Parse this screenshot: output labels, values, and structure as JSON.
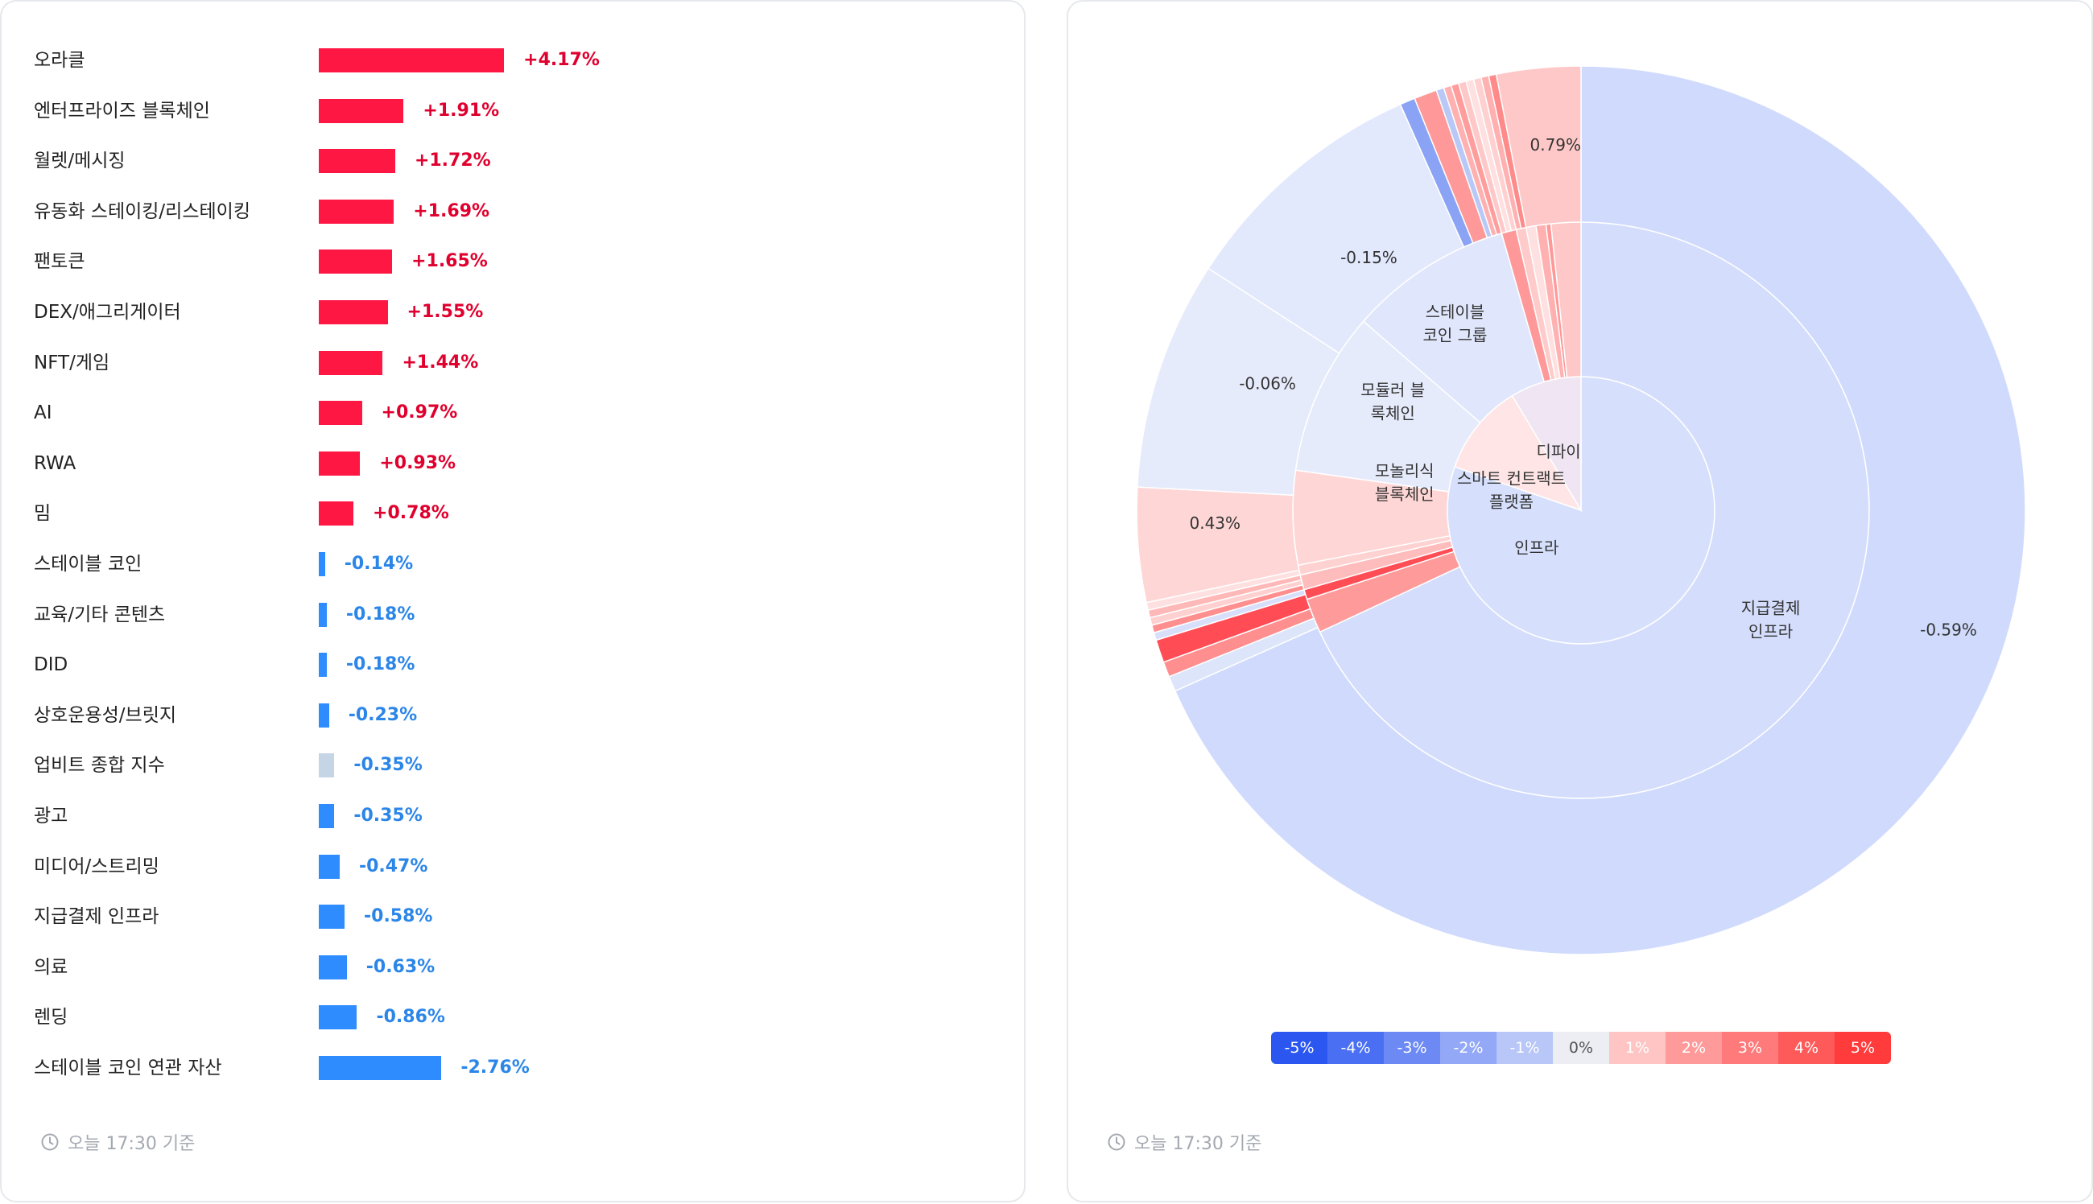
{
  "chart_data": [
    {
      "type": "bar",
      "orientation": "horizontal",
      "unit": "%",
      "categories": [
        "오라클",
        "엔터프라이즈 블록체인",
        "월렛/메시징",
        "유동화 스테이킹/리스테이킹",
        "팬토큰",
        "DEX/애그리게이터",
        "NFT/게임",
        "AI",
        "RWA",
        "밈",
        "스테이블 코인",
        "교육/기타 콘텐츠",
        "DID",
        "상호운용성/브릿지",
        "업비트 종합 지수",
        "광고",
        "미디어/스트리밍",
        "지급결제 인프라",
        "의료",
        "렌딩",
        "스테이블 코인 연관 자산"
      ],
      "values": [
        4.17,
        1.91,
        1.72,
        1.69,
        1.65,
        1.55,
        1.44,
        0.97,
        0.93,
        0.78,
        -0.14,
        -0.18,
        -0.18,
        -0.23,
        -0.35,
        -0.35,
        -0.47,
        -0.58,
        -0.63,
        -0.86,
        -2.76
      ],
      "value_labels": [
        "+4.17%",
        "+1.91%",
        "+1.72%",
        "+1.69%",
        "+1.65%",
        "+1.55%",
        "+1.44%",
        "+0.97%",
        "+0.93%",
        "+0.78%",
        "-0.14%",
        "-0.18%",
        "-0.18%",
        "-0.23%",
        "-0.35%",
        "-0.35%",
        "-0.47%",
        "-0.58%",
        "-0.63%",
        "-0.86%",
        "-2.76%"
      ],
      "highlight_category": "업비트 종합 지수",
      "colors": {
        "positive": "#ff1744",
        "negative": "#2f8cff",
        "index": "#c5d5e6"
      }
    },
    {
      "type": "sunburst",
      "start_angle_deg": 0,
      "direction": "clockwise",
      "legend": {
        "labels": [
          "-5%",
          "-4%",
          "-3%",
          "-2%",
          "-1%",
          "0%",
          "1%",
          "2%",
          "3%",
          "4%",
          "5%"
        ],
        "placement": "bottom"
      },
      "rings": {
        "inner": [
          {
            "label": "인프라",
            "start": 0,
            "end": 289,
            "color": "#d6e0fc"
          },
          {
            "label": "스마트 컨트랙트\n플랫폼",
            "start": 289,
            "end": 329,
            "color": "#ffe5e5"
          },
          {
            "label": "디파이",
            "start": 329,
            "end": 360,
            "color": "#f0e6f3"
          }
        ],
        "middle": [
          {
            "label": "지급결제\n인프라",
            "start": 0,
            "end": 245,
            "color": "#d4defc"
          },
          {
            "label": "",
            "start": 245,
            "end": 252,
            "color": "#ff9a9a"
          },
          {
            "label": "",
            "start": 252,
            "end": 254,
            "color": "#ff4d55"
          },
          {
            "label": "",
            "start": 254,
            "end": 257,
            "color": "#ffbcbc"
          },
          {
            "label": "",
            "start": 257,
            "end": 259,
            "color": "#ffd2d2"
          },
          {
            "label": "모놀리식\n블록체인",
            "start": 259,
            "end": 278,
            "color": "#ffd6d6"
          },
          {
            "label": "모듈러 블\n록체인",
            "start": 278,
            "end": 311,
            "color": "#e6ebfc"
          },
          {
            "label": "스테이블\n코인 그룹",
            "start": 311,
            "end": 344,
            "color": "#e0e7fc"
          },
          {
            "label": "",
            "start": 344,
            "end": 347,
            "color": "#ff9898"
          },
          {
            "label": "",
            "start": 347,
            "end": 349,
            "color": "#ffcaca"
          },
          {
            "label": "",
            "start": 349,
            "end": 351,
            "color": "#ffe0e0"
          },
          {
            "label": "",
            "start": 351,
            "end": 353,
            "color": "#ffb0b0"
          },
          {
            "label": "",
            "start": 353,
            "end": 354,
            "color": "#ff9898"
          },
          {
            "label": "",
            "start": 354,
            "end": 360,
            "color": "#ffc8c8"
          }
        ],
        "outer": [
          {
            "label": "-0.59%",
            "start": 0,
            "end": 246,
            "color": "#cfdafd"
          },
          {
            "label": "",
            "start": 246,
            "end": 248,
            "color": "#dde5fb"
          },
          {
            "label": "",
            "start": 248,
            "end": 250,
            "color": "#ff8e8e"
          },
          {
            "label": "",
            "start": 250,
            "end": 253,
            "color": "#ff4c55"
          },
          {
            "label": "",
            "start": 253,
            "end": 254,
            "color": "#d7dffa"
          },
          {
            "label": "",
            "start": 254,
            "end": 255,
            "color": "#ff8e8e"
          },
          {
            "label": "",
            "start": 255,
            "end": 256,
            "color": "#ffd0d0"
          },
          {
            "label": "",
            "start": 256,
            "end": 257,
            "color": "#ffb8b8"
          },
          {
            "label": "",
            "start": 257,
            "end": 258,
            "color": "#ffe0e0"
          },
          {
            "label": "0.43%",
            "start": 258,
            "end": 273,
            "color": "#ffd6d6"
          },
          {
            "label": "-0.06%",
            "start": 273,
            "end": 303,
            "color": "#e6ebfc"
          },
          {
            "label": "-0.15%",
            "start": 303,
            "end": 336,
            "color": "#e3e9fd"
          },
          {
            "label": "",
            "start": 336,
            "end": 338,
            "color": "#8aa3f4"
          },
          {
            "label": "",
            "start": 338,
            "end": 341,
            "color": "#ff9898"
          },
          {
            "label": "",
            "start": 341,
            "end": 342,
            "color": "#b8c8f7"
          },
          {
            "label": "",
            "start": 342,
            "end": 343,
            "color": "#ffb0b0"
          },
          {
            "label": "",
            "start": 343,
            "end": 344,
            "color": "#ff9c9c"
          },
          {
            "label": "",
            "start": 344,
            "end": 345,
            "color": "#ffc8c8"
          },
          {
            "label": "",
            "start": 345,
            "end": 346,
            "color": "#ffe0e0"
          },
          {
            "label": "",
            "start": 346,
            "end": 347,
            "color": "#ffd0d0"
          },
          {
            "label": "",
            "start": 347,
            "end": 348,
            "color": "#ffb0b0"
          },
          {
            "label": "",
            "start": 348,
            "end": 349,
            "color": "#ff8a8a"
          },
          {
            "label": "0.79%",
            "start": 349,
            "end": 360,
            "color": "#ffc8c8"
          }
        ]
      }
    }
  ],
  "legend_colors": [
    "#2b57f0",
    "#4a6ff2",
    "#6d8af4",
    "#93a8f6",
    "#b8c6f8",
    "#eceef3",
    "#ffc4c4",
    "#ff9a9a",
    "#ff7a7a",
    "#ff5a5a",
    "#ff3b3b"
  ],
  "left_panel": {
    "timestamp": "오늘 17:30 기준"
  },
  "right_panel": {
    "timestamp": "오늘 17:30 기준"
  }
}
